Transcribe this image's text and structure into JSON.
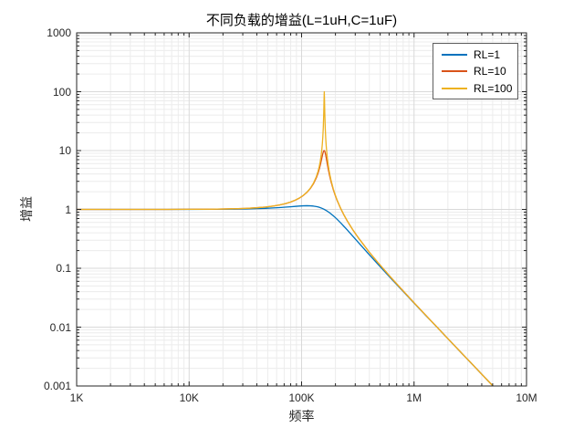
{
  "figure": {
    "title": "不同负载的增益(L=1uH,C=1uF)",
    "xlabel": "频率",
    "ylabel": "增益",
    "colors": {
      "axis": "#262626",
      "grid_major": "#d9d9d9",
      "grid_minor": "#ececec",
      "background": "#ffffff",
      "legend_border": "#5e5e5e"
    }
  },
  "chart_data": {
    "type": "line",
    "title": "不同负载的增益(L=1uH,C=1uF)",
    "xlabel": "频率",
    "ylabel": "增益",
    "x_scale": "log",
    "y_scale": "log",
    "x_range_hz": [
      1000,
      10000000
    ],
    "y_range": [
      0.001,
      1000
    ],
    "x_tick_values": [
      1000,
      10000,
      100000,
      1000000,
      10000000
    ],
    "x_tick_labels": [
      "1K",
      "10K",
      "100K",
      "1M",
      "10M"
    ],
    "y_tick_values": [
      1000,
      100,
      10,
      1,
      0.1,
      0.01,
      0.001
    ],
    "y_tick_labels": [
      "1000",
      "100",
      "10",
      "1",
      "0.1",
      "0.01",
      "0.001"
    ],
    "grid": {
      "major": true,
      "minor": true
    },
    "legend": {
      "position": "top-right",
      "entries": [
        "RL=1",
        "RL=10",
        "RL=100"
      ]
    },
    "resonance_hz": 159155,
    "freq_ratio_to_resonance": [
      0.00628,
      0.01,
      0.02,
      0.04,
      0.063,
      0.1,
      0.158,
      0.2,
      0.25,
      0.3,
      0.35,
      0.4,
      0.45,
      0.5,
      0.55,
      0.6,
      0.65,
      0.7,
      0.75,
      0.8,
      0.85,
      0.88,
      0.9,
      0.92,
      0.94,
      0.95,
      0.96,
      0.97,
      0.98,
      0.99,
      0.995,
      1.0,
      1.005,
      1.01,
      1.02,
      1.03,
      1.04,
      1.05,
      1.06,
      1.08,
      1.1,
      1.12,
      1.15,
      1.2,
      1.25,
      1.3,
      1.4,
      1.5,
      1.6,
      1.8,
      2.0,
      2.5,
      3.0,
      4.0,
      5.0,
      6.3,
      8.0,
      10.0,
      12.6,
      16.0,
      20.0,
      25.0,
      31.6
    ],
    "series": [
      {
        "name": "RL=1",
        "color": "#0072BD",
        "peak_gain": 1.155,
        "gains": [
          1.0,
          1.0,
          1.0,
          1.001,
          1.002,
          1.005,
          1.012,
          1.02,
          1.031,
          1.044,
          1.059,
          1.075,
          1.092,
          1.109,
          1.126,
          1.14,
          1.15,
          1.155,
          1.152,
          1.14,
          1.118,
          1.101,
          1.087,
          1.072,
          1.056,
          1.047,
          1.038,
          1.029,
          1.02,
          1.01,
          1.005,
          1.0,
          0.995,
          0.99,
          0.98,
          0.969,
          0.959,
          0.948,
          0.937,
          0.915,
          0.893,
          0.871,
          0.837,
          0.782,
          0.73,
          0.679,
          0.589,
          0.512,
          0.448,
          0.348,
          0.277,
          0.172,
          0.117,
          0.0644,
          0.0408,
          0.0255,
          0.0157,
          0.0101,
          0.00632,
          0.00391,
          0.0025,
          0.0016,
          0.001
        ]
      },
      {
        "name": "RL=10",
        "color": "#D95319",
        "peak_gain": 10,
        "gains": [
          1.0,
          1.0,
          1.0,
          1.001,
          1.004,
          1.01,
          1.025,
          1.041,
          1.066,
          1.098,
          1.139,
          1.189,
          1.252,
          1.33,
          1.429,
          1.556,
          1.721,
          1.943,
          2.253,
          2.712,
          3.446,
          4.13,
          4.757,
          5.585,
          6.684,
          7.346,
          8.068,
          8.804,
          9.461,
          9.903,
          10.0,
          10.0,
          9.901,
          9.71,
          9.115,
          8.357,
          7.565,
          6.815,
          6.141,
          5.041,
          4.218,
          3.598,
          2.921,
          2.193,
          1.735,
          1.424,
          1.031,
          0.794,
          0.638,
          0.445,
          0.333,
          0.19,
          0.125,
          0.0666,
          0.0417,
          0.0258,
          0.0159,
          0.0101,
          0.00634,
          0.00392,
          0.00251,
          0.0016,
          0.001
        ]
      },
      {
        "name": "RL=100",
        "color": "#EDB120",
        "peak_gain": 100,
        "gains": [
          1.0,
          1.0,
          1.0,
          1.001,
          1.004,
          1.01,
          1.026,
          1.042,
          1.067,
          1.099,
          1.14,
          1.19,
          1.254,
          1.333,
          1.434,
          1.563,
          1.732,
          1.961,
          2.285,
          2.777,
          3.602,
          4.429,
          5.257,
          6.499,
          8.563,
          10.208,
          12.66,
          16.696,
          24.513,
          44.992,
          70.977,
          100.0,
          70.447,
          44.454,
          24.0,
          16.19,
          12.156,
          9.706,
          8.061,
          5.997,
          4.755,
          3.927,
          3.099,
          2.272,
          1.777,
          1.449,
          1.042,
          0.8,
          0.641,
          0.446,
          0.333,
          0.19,
          0.125,
          0.0667,
          0.0417,
          0.0258,
          0.0159,
          0.0101,
          0.00634,
          0.00392,
          0.00251,
          0.0016,
          0.001
        ]
      }
    ]
  }
}
